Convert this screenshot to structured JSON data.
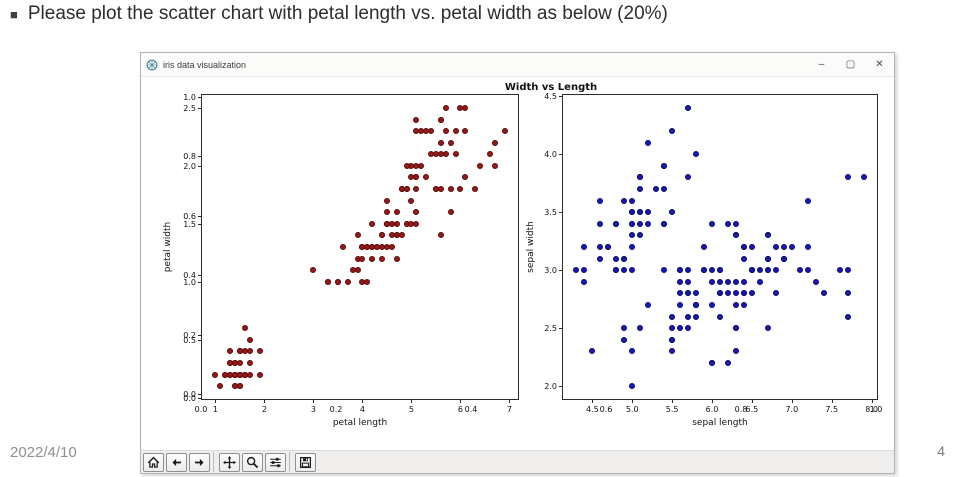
{
  "slide": {
    "bullet": "■",
    "title": "Please plot the scatter chart with petal length vs. petal width as below (20%)",
    "date": "2022/4/10",
    "page_number": "4"
  },
  "window": {
    "title": "iris data visualization",
    "controls": {
      "minimize": "–",
      "maximize": "▢",
      "close": "✕"
    }
  },
  "toolbar": {
    "buttons": [
      {
        "name": "home"
      },
      {
        "name": "back"
      },
      {
        "name": "forward"
      },
      {
        "name": "pan"
      },
      {
        "name": "zoom"
      },
      {
        "name": "configure-subplots"
      },
      {
        "name": "save"
      }
    ]
  },
  "figure": {
    "title": "Width vs Length",
    "ghost_axis": {
      "x_tick_values": [
        0,
        0.2,
        0.4,
        0.6,
        0.8,
        1.0
      ],
      "x_tick_labels": [
        "0.0",
        "0.2",
        "0.4",
        "0.6",
        "0.8",
        "1.0"
      ],
      "y_tick_values": [
        0,
        0.2,
        0.4,
        0.6,
        0.8,
        1.0
      ],
      "y_tick_labels": [
        "0.0",
        "0.2",
        "0.4",
        "0.6",
        "0.8",
        "1.0"
      ]
    }
  },
  "chart_data": [
    {
      "type": "scatter",
      "name": "petal-scatter",
      "xlabel": "petal length",
      "ylabel": "petal width",
      "xlim": [
        0.705,
        7.195
      ],
      "ylim": [
        -0.02,
        2.62
      ],
      "x_tick_values": [
        1,
        2,
        3,
        4,
        5,
        6,
        7
      ],
      "x_tick_labels": [
        "1",
        "2",
        "3",
        "4",
        "5",
        "6",
        "7"
      ],
      "y_tick_values": [
        0,
        0.5,
        1.0,
        1.5,
        2.0,
        2.5
      ],
      "y_tick_labels": [
        "0.0",
        "0.5",
        "1.0",
        "1.5",
        "2.0",
        "2.5"
      ],
      "marker_color": "#941919",
      "marker_edge": "#5e0a0a",
      "points": [
        [
          1.4,
          0.2
        ],
        [
          1.4,
          0.2
        ],
        [
          1.3,
          0.2
        ],
        [
          1.5,
          0.2
        ],
        [
          1.4,
          0.2
        ],
        [
          1.7,
          0.4
        ],
        [
          1.4,
          0.3
        ],
        [
          1.5,
          0.2
        ],
        [
          1.4,
          0.2
        ],
        [
          1.5,
          0.1
        ],
        [
          1.5,
          0.2
        ],
        [
          1.6,
          0.2
        ],
        [
          1.4,
          0.1
        ],
        [
          1.1,
          0.1
        ],
        [
          1.2,
          0.2
        ],
        [
          1.5,
          0.4
        ],
        [
          1.3,
          0.4
        ],
        [
          1.4,
          0.3
        ],
        [
          1.7,
          0.3
        ],
        [
          1.5,
          0.3
        ],
        [
          1.7,
          0.2
        ],
        [
          1.5,
          0.4
        ],
        [
          1.0,
          0.2
        ],
        [
          1.7,
          0.5
        ],
        [
          1.9,
          0.2
        ],
        [
          1.6,
          0.2
        ],
        [
          1.6,
          0.4
        ],
        [
          1.5,
          0.2
        ],
        [
          1.4,
          0.2
        ],
        [
          1.6,
          0.2
        ],
        [
          1.6,
          0.2
        ],
        [
          1.5,
          0.4
        ],
        [
          1.5,
          0.1
        ],
        [
          1.4,
          0.2
        ],
        [
          1.5,
          0.2
        ],
        [
          1.2,
          0.2
        ],
        [
          1.3,
          0.2
        ],
        [
          1.4,
          0.1
        ],
        [
          1.3,
          0.2
        ],
        [
          1.5,
          0.2
        ],
        [
          1.3,
          0.3
        ],
        [
          1.3,
          0.3
        ],
        [
          1.3,
          0.2
        ],
        [
          1.6,
          0.6
        ],
        [
          1.9,
          0.4
        ],
        [
          1.4,
          0.3
        ],
        [
          1.6,
          0.2
        ],
        [
          1.4,
          0.2
        ],
        [
          1.5,
          0.2
        ],
        [
          1.4,
          0.2
        ],
        [
          4.7,
          1.4
        ],
        [
          4.5,
          1.5
        ],
        [
          4.9,
          1.5
        ],
        [
          4.0,
          1.3
        ],
        [
          4.6,
          1.5
        ],
        [
          4.5,
          1.3
        ],
        [
          4.7,
          1.6
        ],
        [
          3.3,
          1.0
        ],
        [
          4.6,
          1.3
        ],
        [
          3.9,
          1.4
        ],
        [
          3.5,
          1.0
        ],
        [
          4.2,
          1.5
        ],
        [
          4.0,
          1.0
        ],
        [
          4.7,
          1.4
        ],
        [
          3.6,
          1.3
        ],
        [
          4.4,
          1.4
        ],
        [
          4.5,
          1.5
        ],
        [
          4.1,
          1.0
        ],
        [
          4.5,
          1.5
        ],
        [
          3.9,
          1.1
        ],
        [
          4.8,
          1.8
        ],
        [
          4.0,
          1.3
        ],
        [
          4.9,
          1.5
        ],
        [
          4.7,
          1.2
        ],
        [
          4.3,
          1.3
        ],
        [
          4.4,
          1.4
        ],
        [
          4.8,
          1.4
        ],
        [
          5.0,
          1.7
        ],
        [
          4.5,
          1.5
        ],
        [
          3.5,
          1.0
        ],
        [
          3.8,
          1.1
        ],
        [
          3.7,
          1.0
        ],
        [
          3.9,
          1.2
        ],
        [
          5.1,
          1.6
        ],
        [
          4.5,
          1.5
        ],
        [
          4.5,
          1.6
        ],
        [
          4.7,
          1.5
        ],
        [
          4.4,
          1.3
        ],
        [
          4.1,
          1.3
        ],
        [
          4.0,
          1.3
        ],
        [
          4.4,
          1.2
        ],
        [
          4.6,
          1.4
        ],
        [
          4.0,
          1.2
        ],
        [
          3.3,
          1.0
        ],
        [
          4.2,
          1.3
        ],
        [
          4.2,
          1.2
        ],
        [
          4.2,
          1.3
        ],
        [
          4.3,
          1.3
        ],
        [
          3.0,
          1.1
        ],
        [
          4.1,
          1.3
        ],
        [
          6.0,
          2.5
        ],
        [
          5.1,
          1.9
        ],
        [
          5.9,
          2.1
        ],
        [
          5.6,
          1.8
        ],
        [
          5.8,
          2.2
        ],
        [
          6.6,
          2.1
        ],
        [
          4.5,
          1.7
        ],
        [
          6.3,
          1.8
        ],
        [
          5.8,
          1.8
        ],
        [
          6.1,
          2.5
        ],
        [
          5.1,
          2.0
        ],
        [
          5.3,
          1.9
        ],
        [
          5.5,
          2.1
        ],
        [
          5.0,
          2.0
        ],
        [
          5.1,
          2.4
        ],
        [
          5.3,
          2.3
        ],
        [
          5.5,
          1.8
        ],
        [
          6.7,
          2.2
        ],
        [
          6.9,
          2.3
        ],
        [
          5.0,
          1.5
        ],
        [
          5.7,
          2.3
        ],
        [
          4.9,
          2.0
        ],
        [
          6.7,
          2.0
        ],
        [
          4.9,
          1.8
        ],
        [
          5.7,
          2.1
        ],
        [
          6.0,
          1.8
        ],
        [
          4.8,
          1.8
        ],
        [
          4.9,
          1.8
        ],
        [
          5.6,
          2.1
        ],
        [
          5.8,
          1.6
        ],
        [
          6.1,
          1.9
        ],
        [
          6.4,
          2.0
        ],
        [
          5.6,
          2.2
        ],
        [
          5.1,
          1.5
        ],
        [
          5.6,
          1.4
        ],
        [
          6.1,
          2.3
        ],
        [
          5.6,
          2.4
        ],
        [
          5.5,
          1.8
        ],
        [
          4.8,
          1.8
        ],
        [
          5.4,
          2.1
        ],
        [
          5.6,
          2.4
        ],
        [
          5.1,
          2.3
        ],
        [
          5.1,
          1.9
        ],
        [
          5.9,
          2.3
        ],
        [
          5.7,
          2.5
        ],
        [
          5.2,
          2.3
        ],
        [
          5.0,
          1.9
        ],
        [
          5.2,
          2.0
        ],
        [
          5.4,
          2.3
        ],
        [
          5.1,
          1.8
        ]
      ]
    },
    {
      "type": "scatter",
      "name": "sepal-scatter",
      "xlabel": "sepal length",
      "ylabel": "sepal width",
      "xlim": [
        4.12,
        8.08
      ],
      "ylim": [
        1.88,
        4.52
      ],
      "x_tick_values": [
        4.5,
        5.0,
        5.5,
        6.0,
        6.5,
        7.0,
        7.5,
        8.0
      ],
      "x_tick_labels": [
        "4.5",
        "5.0",
        "5.5",
        "6.0",
        "6.5",
        "7.0",
        "7.5",
        "8.0"
      ],
      "y_tick_values": [
        2.0,
        2.5,
        3.0,
        3.5,
        4.0,
        4.5
      ],
      "y_tick_labels": [
        "2.0",
        "2.5",
        "3.0",
        "3.5",
        "4.0",
        "4.5"
      ],
      "marker_color": "#1818b0",
      "marker_edge": "#0b0b6e",
      "points": [
        [
          5.1,
          3.5
        ],
        [
          4.9,
          3.0
        ],
        [
          4.7,
          3.2
        ],
        [
          4.6,
          3.1
        ],
        [
          5.0,
          3.6
        ],
        [
          5.4,
          3.9
        ],
        [
          4.6,
          3.4
        ],
        [
          5.0,
          3.4
        ],
        [
          4.4,
          2.9
        ],
        [
          4.9,
          3.1
        ],
        [
          5.4,
          3.7
        ],
        [
          4.8,
          3.4
        ],
        [
          4.8,
          3.0
        ],
        [
          4.3,
          3.0
        ],
        [
          5.8,
          4.0
        ],
        [
          5.7,
          4.4
        ],
        [
          5.4,
          3.9
        ],
        [
          5.1,
          3.5
        ],
        [
          5.7,
          3.8
        ],
        [
          5.1,
          3.8
        ],
        [
          5.4,
          3.4
        ],
        [
          5.1,
          3.7
        ],
        [
          4.6,
          3.6
        ],
        [
          5.1,
          3.3
        ],
        [
          4.8,
          3.4
        ],
        [
          5.0,
          3.0
        ],
        [
          5.0,
          3.4
        ],
        [
          5.2,
          3.5
        ],
        [
          5.2,
          3.4
        ],
        [
          4.7,
          3.2
        ],
        [
          4.8,
          3.1
        ],
        [
          5.4,
          3.4
        ],
        [
          5.2,
          4.1
        ],
        [
          5.5,
          4.2
        ],
        [
          4.9,
          3.1
        ],
        [
          5.0,
          3.2
        ],
        [
          5.5,
          3.5
        ],
        [
          4.9,
          3.6
        ],
        [
          4.4,
          3.0
        ],
        [
          5.1,
          3.4
        ],
        [
          5.0,
          3.5
        ],
        [
          4.5,
          2.3
        ],
        [
          4.4,
          3.2
        ],
        [
          5.0,
          3.5
        ],
        [
          5.1,
          3.8
        ],
        [
          4.8,
          3.0
        ],
        [
          5.1,
          3.8
        ],
        [
          4.6,
          3.2
        ],
        [
          5.3,
          3.7
        ],
        [
          5.0,
          3.3
        ],
        [
          7.0,
          3.2
        ],
        [
          6.4,
          3.2
        ],
        [
          6.9,
          3.1
        ],
        [
          5.5,
          2.3
        ],
        [
          6.5,
          2.8
        ],
        [
          5.7,
          2.8
        ],
        [
          6.3,
          3.3
        ],
        [
          4.9,
          2.4
        ],
        [
          6.6,
          2.9
        ],
        [
          5.2,
          2.7
        ],
        [
          5.0,
          2.0
        ],
        [
          5.9,
          3.0
        ],
        [
          6.0,
          2.2
        ],
        [
          6.1,
          2.9
        ],
        [
          5.6,
          2.9
        ],
        [
          6.7,
          3.1
        ],
        [
          5.6,
          3.0
        ],
        [
          5.8,
          2.7
        ],
        [
          6.2,
          2.2
        ],
        [
          5.6,
          2.5
        ],
        [
          5.9,
          3.2
        ],
        [
          6.1,
          2.8
        ],
        [
          6.3,
          2.5
        ],
        [
          6.1,
          2.8
        ],
        [
          6.4,
          2.9
        ],
        [
          6.6,
          3.0
        ],
        [
          6.8,
          2.8
        ],
        [
          6.7,
          3.0
        ],
        [
          6.0,
          2.9
        ],
        [
          5.7,
          2.6
        ],
        [
          5.5,
          2.4
        ],
        [
          5.5,
          2.4
        ],
        [
          5.8,
          2.7
        ],
        [
          6.0,
          2.7
        ],
        [
          5.4,
          3.0
        ],
        [
          6.0,
          3.4
        ],
        [
          6.7,
          3.1
        ],
        [
          6.3,
          2.3
        ],
        [
          5.6,
          3.0
        ],
        [
          5.5,
          2.5
        ],
        [
          5.5,
          2.6
        ],
        [
          6.1,
          3.0
        ],
        [
          5.8,
          2.6
        ],
        [
          5.0,
          2.3
        ],
        [
          5.6,
          2.7
        ],
        [
          5.7,
          3.0
        ],
        [
          5.7,
          2.9
        ],
        [
          6.2,
          2.9
        ],
        [
          5.1,
          2.5
        ],
        [
          5.7,
          2.8
        ],
        [
          6.3,
          3.3
        ],
        [
          5.8,
          2.7
        ],
        [
          7.1,
          3.0
        ],
        [
          6.3,
          2.9
        ],
        [
          6.5,
          3.0
        ],
        [
          7.6,
          3.0
        ],
        [
          4.9,
          2.5
        ],
        [
          7.3,
          2.9
        ],
        [
          6.7,
          2.5
        ],
        [
          7.2,
          3.6
        ],
        [
          6.5,
          3.2
        ],
        [
          6.4,
          2.7
        ],
        [
          6.8,
          3.0
        ],
        [
          5.7,
          2.5
        ],
        [
          5.8,
          2.8
        ],
        [
          6.4,
          3.2
        ],
        [
          6.5,
          3.0
        ],
        [
          7.7,
          3.8
        ],
        [
          7.7,
          2.6
        ],
        [
          6.0,
          2.2
        ],
        [
          6.9,
          3.2
        ],
        [
          5.6,
          2.8
        ],
        [
          7.7,
          2.8
        ],
        [
          6.3,
          2.7
        ],
        [
          6.7,
          3.3
        ],
        [
          7.2,
          3.2
        ],
        [
          6.2,
          2.8
        ],
        [
          6.1,
          3.0
        ],
        [
          6.4,
          2.8
        ],
        [
          7.2,
          3.0
        ],
        [
          7.4,
          2.8
        ],
        [
          7.9,
          3.8
        ],
        [
          6.4,
          2.8
        ],
        [
          6.3,
          2.8
        ],
        [
          6.1,
          2.6
        ],
        [
          7.7,
          3.0
        ],
        [
          6.3,
          3.4
        ],
        [
          6.4,
          3.1
        ],
        [
          6.0,
          3.0
        ],
        [
          6.9,
          3.1
        ],
        [
          6.7,
          3.1
        ],
        [
          6.9,
          3.1
        ],
        [
          5.8,
          2.7
        ],
        [
          6.8,
          3.2
        ],
        [
          6.7,
          3.3
        ],
        [
          6.7,
          3.0
        ],
        [
          6.3,
          2.5
        ],
        [
          6.5,
          3.0
        ],
        [
          6.2,
          3.4
        ],
        [
          5.9,
          3.0
        ]
      ]
    }
  ]
}
